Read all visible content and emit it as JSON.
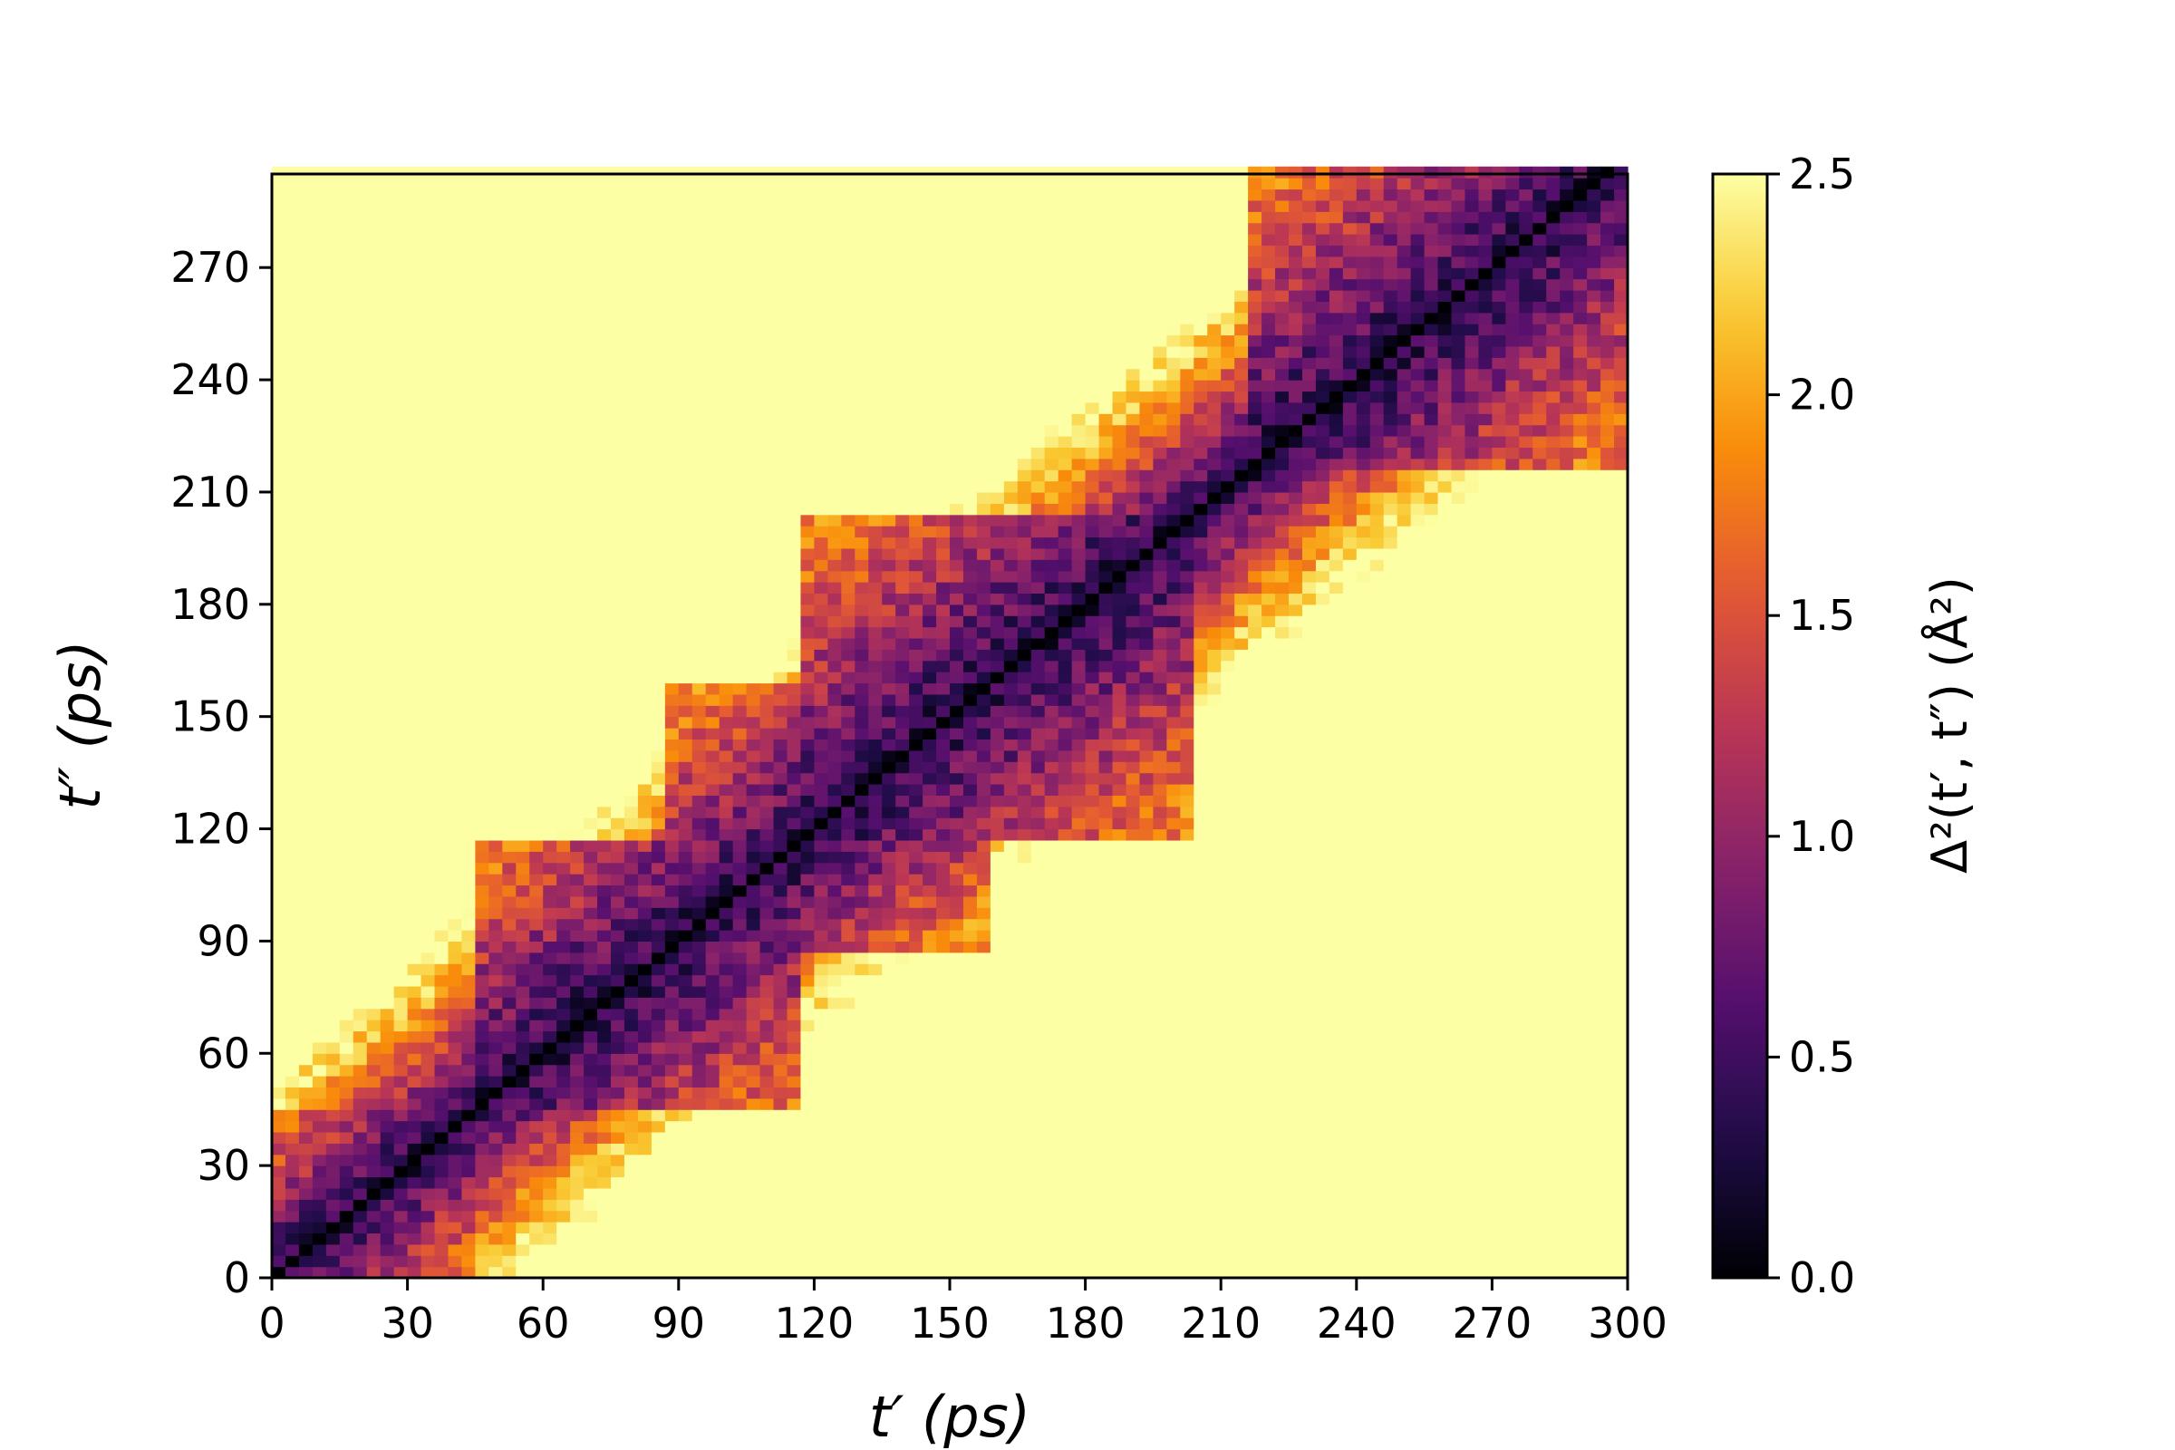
{
  "chart_data": {
    "type": "heatmap",
    "title": "",
    "xlabel": "t′ (ps)",
    "ylabel": "t″ (ps)",
    "xlim": [
      0,
      300
    ],
    "ylim": [
      0,
      295
    ],
    "xticks": [
      0,
      30,
      60,
      90,
      120,
      150,
      180,
      210,
      240,
      270,
      300
    ],
    "yticks": [
      0,
      30,
      60,
      90,
      120,
      150,
      180,
      210,
      240,
      270
    ],
    "xtick_labels": [
      "0",
      "30",
      "60",
      "90",
      "120",
      "150",
      "180",
      "210",
      "240",
      "270",
      "300"
    ],
    "ytick_labels": [
      "0",
      "30",
      "60",
      "90",
      "120",
      "150",
      "180",
      "210",
      "240",
      "270"
    ],
    "grid_step": 3,
    "colormap": "inferno",
    "colorbar": {
      "label": "Δ²(t′, t″) (Å²)",
      "min": 0.0,
      "max": 2.5,
      "ticks": [
        0.0,
        0.5,
        1.0,
        1.5,
        2.0,
        2.5
      ],
      "tick_labels": [
        "0.0",
        "0.5",
        "1.0",
        "1.5",
        "2.0",
        "2.5"
      ]
    },
    "values_description_note": "",
    "blocks": [
      {
        "range": [
          0,
          45
        ],
        "level": 1.0
      },
      {
        "range": [
          45,
          118
        ],
        "level": 1.0
      },
      {
        "range": [
          88,
          160
        ],
        "level": 1.1
      },
      {
        "range": [
          118,
          205
        ],
        "level": 1.05
      },
      {
        "range": [
          195,
          230
        ],
        "level": 1.2
      },
      {
        "range": [
          215,
          300
        ],
        "level": 1.05
      }
    ],
    "diagonal_value": 0.0,
    "saturation_value": 2.5,
    "colors": {
      "inferno_stops": [
        "#000004",
        "#1f0c48",
        "#550f6d",
        "#88226a",
        "#ba3655",
        "#e35933",
        "#f98c0a",
        "#f9c932",
        "#fcffa4"
      ]
    }
  }
}
